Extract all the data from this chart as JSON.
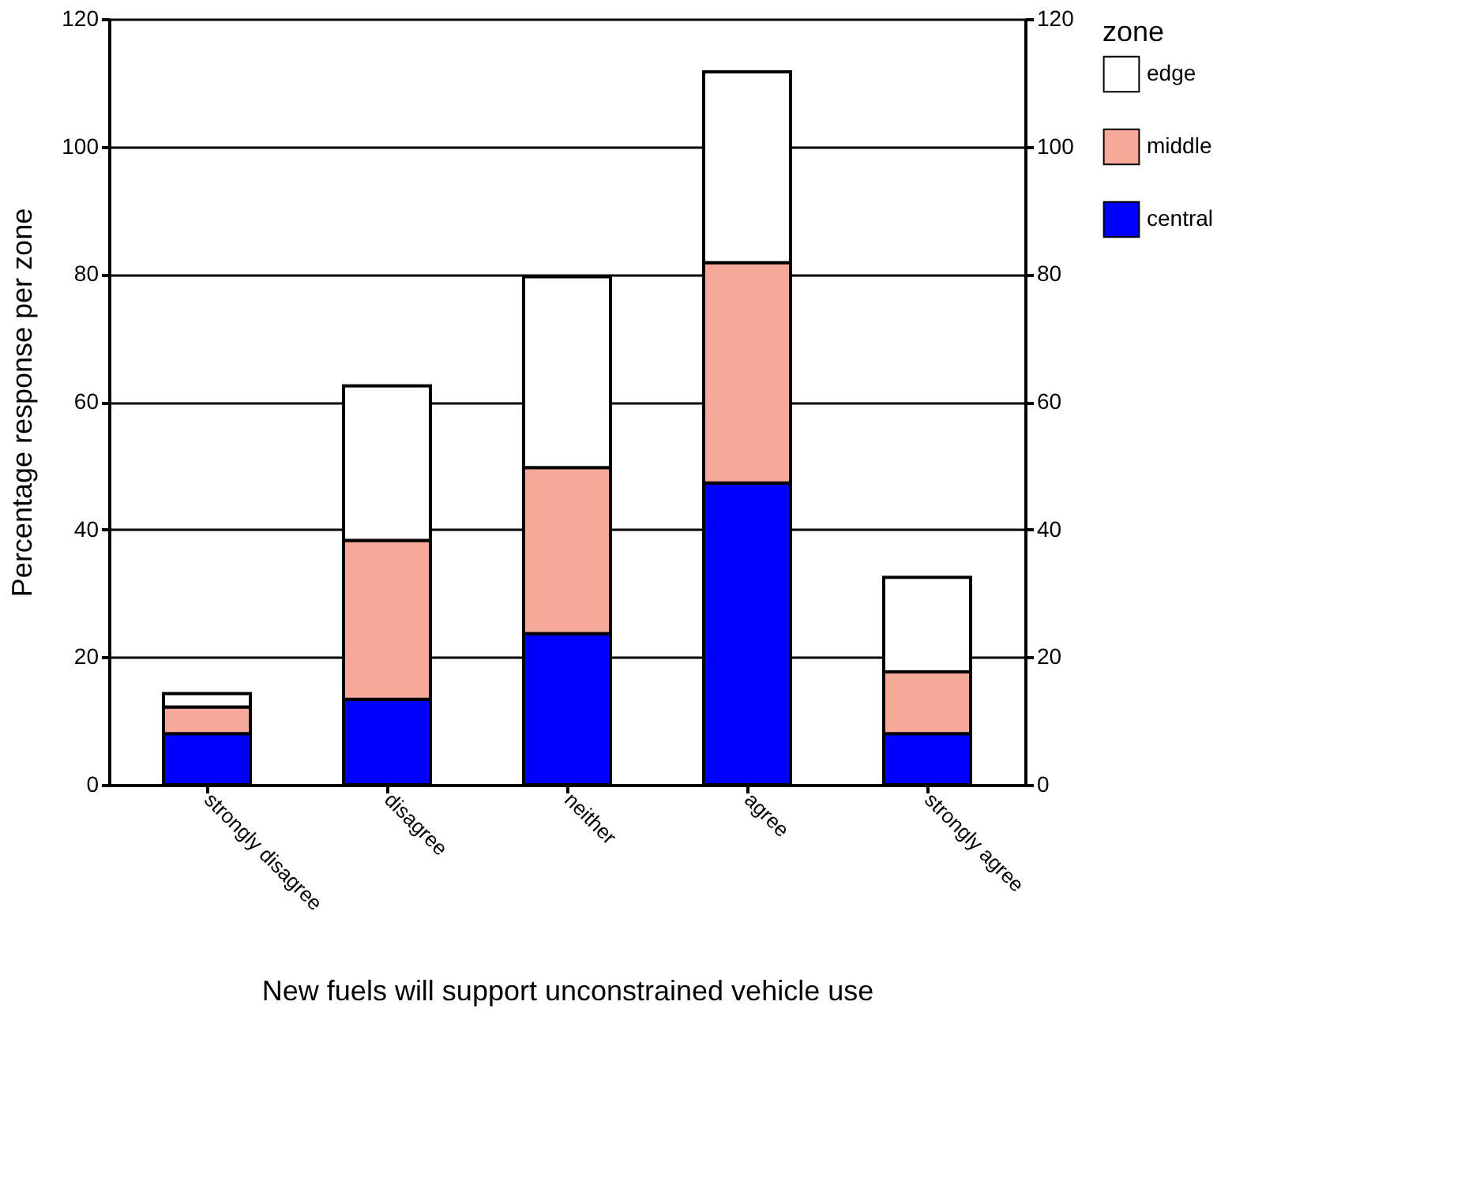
{
  "chart_data": {
    "type": "bar",
    "stacked": true,
    "xlabel": "New fuels will support unconstrained vehicle use",
    "ylabel": "Percentage response per zone",
    "legend_title": "zone",
    "legend": "right",
    "categories": [
      "strongly disagree",
      "disagree",
      "neither",
      "agree",
      "strongly agree"
    ],
    "series": [
      {
        "name": "central",
        "color": "#0000ff",
        "values": [
          8,
          13.4,
          23.7,
          47.3,
          8
        ]
      },
      {
        "name": "middle",
        "color": "#f8a898",
        "values": [
          4.2,
          24.9,
          26,
          34.5,
          9.7
        ]
      },
      {
        "name": "edge",
        "color": "#ffffff",
        "values": [
          2.1,
          24.2,
          29.9,
          29.9,
          14.8
        ]
      }
    ],
    "ylim": [
      0,
      120
    ],
    "yticks": [
      0,
      20,
      40,
      60,
      80,
      100,
      120
    ],
    "y2lim": [
      0,
      120
    ],
    "y2ticks": [
      0,
      20,
      40,
      60,
      80,
      100,
      120
    ],
    "grid": "y"
  }
}
